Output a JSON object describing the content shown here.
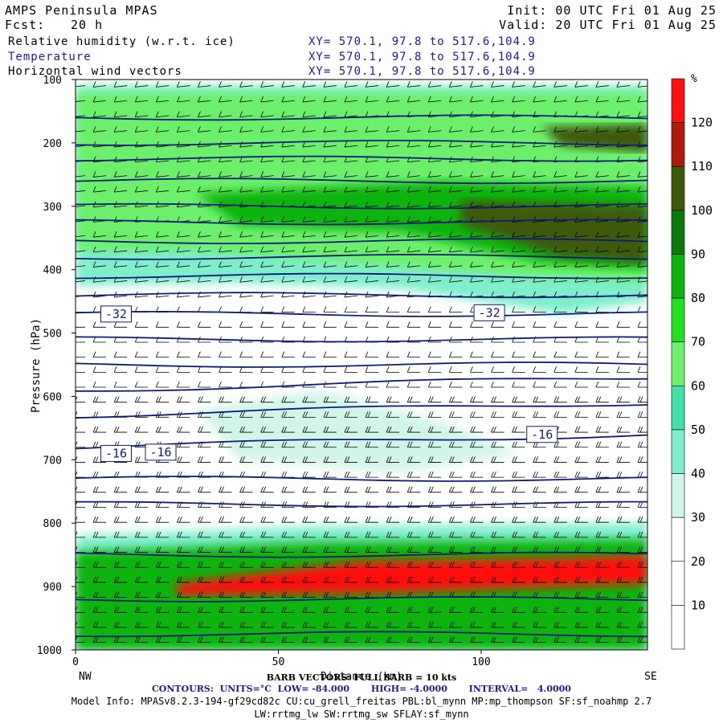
{
  "header": {
    "title": "AMPS Peninsula MPAS",
    "fcst_label": "Fcst:",
    "fcst_value": "20 h",
    "init": "Init: 00 UTC Fri 01 Aug 25",
    "valid": "Valid: 20 UTC Fri 01 Aug 25",
    "fields": [
      {
        "name": "Relative humidity (w.r.t. ice)",
        "xy": "XY= 570.1, 97.8 to 517.6,104.9"
      },
      {
        "name": "Temperature",
        "xy": "XY= 570.1, 97.8 to 517.6,104.9"
      },
      {
        "name": "Horizontal wind vectors",
        "xy": "XY= 570.1, 97.8 to 517.6,104.9"
      }
    ]
  },
  "chart_data": {
    "type": "heatmap",
    "ylabel": "Pressure (hPa)",
    "xlabel": "Distance (km)",
    "xlim": [
      0,
      141
    ],
    "ylim": [
      1000,
      100
    ],
    "x_ticks": [
      0,
      50,
      100
    ],
    "y_ticks": [
      100,
      200,
      300,
      400,
      500,
      600,
      700,
      800,
      900,
      1000
    ],
    "x_end_labels": {
      "left": "NW",
      "right": "SE"
    },
    "colorbar": {
      "unit": "%",
      "levels": [
        10,
        20,
        30,
        40,
        50,
        60,
        70,
        80,
        90,
        100,
        110,
        120
      ],
      "colors": [
        "#ffffff",
        "#ffffff",
        "#ffffff",
        "#d2f5ea",
        "#7eeecc",
        "#44e2ab",
        "#6cf06c",
        "#22e022",
        "#10b410",
        "#0a7a0a",
        "#3e5a08",
        "#b01a0a",
        "#ff1010"
      ]
    },
    "rh_features": [
      {
        "name": "upper moist layer",
        "rh": 40,
        "points": [
          [
            0,
            110
          ],
          [
            141,
            110
          ],
          [
            141,
            450
          ],
          [
            120,
            470
          ],
          [
            80,
            430
          ],
          [
            40,
            420
          ],
          [
            0,
            425
          ],
          [
            0,
            110
          ]
        ]
      },
      {
        "name": "upper moist core",
        "rh": 60,
        "points": [
          [
            0,
            120
          ],
          [
            141,
            120
          ],
          [
            141,
            420
          ],
          [
            110,
            410
          ],
          [
            70,
            390
          ],
          [
            30,
            370
          ],
          [
            0,
            370
          ],
          [
            0,
            120
          ]
        ]
      },
      {
        "name": "upper band",
        "rh": 80,
        "points": [
          [
            30,
            280
          ],
          [
            90,
            260
          ],
          [
            141,
            270
          ],
          [
            141,
            400
          ],
          [
            115,
            390
          ],
          [
            80,
            340
          ],
          [
            40,
            330
          ],
          [
            30,
            280
          ]
        ]
      },
      {
        "name": "upper max",
        "rh": 100,
        "points": [
          [
            95,
            290
          ],
          [
            141,
            300
          ],
          [
            141,
            390
          ],
          [
            120,
            380
          ],
          [
            95,
            330
          ],
          [
            95,
            290
          ]
        ]
      },
      {
        "name": "tropopause moist",
        "rh": 100,
        "points": [
          [
            115,
            175
          ],
          [
            141,
            170
          ],
          [
            141,
            215
          ],
          [
            120,
            205
          ],
          [
            115,
            175
          ]
        ]
      },
      {
        "name": "mid plume",
        "rh": 30,
        "points": [
          [
            30,
            620
          ],
          [
            60,
            590
          ],
          [
            90,
            640
          ],
          [
            110,
            690
          ],
          [
            80,
            720
          ],
          [
            40,
            700
          ],
          [
            30,
            620
          ]
        ]
      },
      {
        "name": "boundary layer",
        "rh": 40,
        "points": [
          [
            0,
            820
          ],
          [
            60,
            805
          ],
          [
            141,
            800
          ],
          [
            141,
            1000
          ],
          [
            0,
            1000
          ],
          [
            0,
            820
          ]
        ]
      },
      {
        "name": "boundary layer core",
        "rh": 80,
        "points": [
          [
            0,
            845
          ],
          [
            60,
            830
          ],
          [
            141,
            825
          ],
          [
            141,
            1000
          ],
          [
            0,
            1000
          ],
          [
            0,
            845
          ]
        ]
      },
      {
        "name": "cloud layer",
        "rh": 120,
        "points": [
          [
            25,
            895
          ],
          [
            70,
            860
          ],
          [
            120,
            855
          ],
          [
            141,
            850
          ],
          [
            141,
            895
          ],
          [
            120,
            900
          ],
          [
            80,
            910
          ],
          [
            25,
            915
          ],
          [
            25,
            895
          ]
        ]
      }
    ],
    "temperature_contours": {
      "units": "°C",
      "low": -84.0,
      "high": -4.0,
      "interval": 4.0,
      "labels": [
        {
          "text": "-32",
          "x": 10,
          "p": 470
        },
        {
          "text": "-32",
          "x": 102,
          "p": 468
        },
        {
          "text": "-16",
          "x": 10,
          "p": 690
        },
        {
          "text": "-16",
          "x": 21,
          "p": 688
        },
        {
          "text": "-16",
          "x": 115,
          "p": 660
        }
      ],
      "levels_p": [
        160,
        200,
        225,
        260,
        300,
        325,
        355,
        380,
        410,
        440,
        470,
        510,
        550,
        590,
        630,
        680,
        730,
        770,
        850,
        920,
        975
      ]
    },
    "wind": {
      "barb_note": "BARB VECTORS: FULL BARB = 10 kts"
    }
  },
  "footer": {
    "barb": "BARB VECTORS: FULL BARB = 10 kts",
    "contours": "CONTOURS:  UNITS=°C  LOW= -84.000       HIGH= -4.0000       INTERVAL=   4.0000",
    "model_info": "Model Info: MPASv8.2.3-194-gf29cd82c CU:cu_grell_freitas PBL:bl_mynn MP:mp_thompson SF:sf_noahmp 2.7",
    "model_info2": "LW:rrtmg_lw SW:rrtmg_sw SFLAY:sf_mynn"
  }
}
